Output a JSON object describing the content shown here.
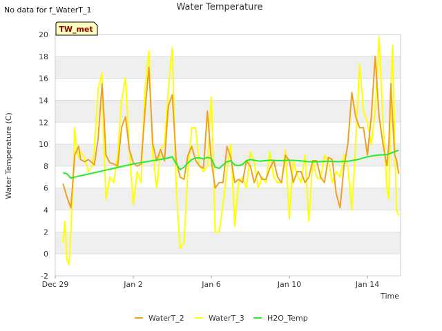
{
  "note": "No data for f_WaterT_1",
  "station_tag": "TW_met",
  "colors": {
    "WaterT_2": "#f0a020",
    "WaterT_3": "#ffff00",
    "H2O_Temp": "#22ee22",
    "band": "#efefef",
    "grid": "#dddddd"
  },
  "chart_data": {
    "type": "line",
    "title": "Water Temperature",
    "xlabel": "Time",
    "ylabel": "Water Temperature (C)",
    "x_ticks": [
      "Dec 29",
      "Jan 2",
      "Jan 6",
      "Jan 10",
      "Jan 14"
    ],
    "y_ticks": [
      "-2",
      "0",
      "2",
      "4",
      "6",
      "8",
      "10",
      "12",
      "14",
      "16",
      "18",
      "20"
    ],
    "xlim_days": [
      0,
      17.7
    ],
    "ylim": [
      -2,
      20
    ],
    "legend_position": "bottom-center",
    "grid": true,
    "series": [
      {
        "name": "WaterT_2",
        "x": [
          0.4,
          0.6,
          0.8,
          0.9,
          1.0,
          1.2,
          1.3,
          1.5,
          1.7,
          1.9,
          2.0,
          2.2,
          2.4,
          2.5,
          2.6,
          2.8,
          3.0,
          3.2,
          3.4,
          3.6,
          3.8,
          4.0,
          4.2,
          4.4,
          4.6,
          4.8,
          5.0,
          5.2,
          5.4,
          5.6,
          5.8,
          6.0,
          6.2,
          6.4,
          6.6,
          6.8,
          7.0,
          7.2,
          7.4,
          7.6,
          7.8,
          8.0,
          8.2,
          8.4,
          8.6,
          8.8,
          9.0,
          9.2,
          9.4,
          9.6,
          9.8,
          10.0,
          10.2,
          10.4,
          10.6,
          10.8,
          11.0,
          11.2,
          11.4,
          11.6,
          11.8,
          12.0,
          12.2,
          12.4,
          12.6,
          12.8,
          13.0,
          13.2,
          13.4,
          13.6,
          13.8,
          14.0,
          14.2,
          14.4,
          14.6,
          14.8,
          15.0,
          15.2,
          15.4,
          15.6,
          15.8,
          16.0,
          16.2,
          16.4,
          16.6,
          16.8,
          17.0
        ],
        "values": [
          6.4,
          5.2,
          4.2,
          6.5,
          9.0,
          9.8,
          8.6,
          8.4,
          8.6,
          8.3,
          8.1,
          10.5,
          15.5,
          12.5,
          9.0,
          8.3,
          8.2,
          8.0,
          11.5,
          12.5,
          9.5,
          8.3,
          8.0,
          8.2,
          13.0,
          17.0,
          10.0,
          8.5,
          9.5,
          8.5,
          13.5,
          14.5,
          8.5,
          7.0,
          6.8,
          9.0,
          9.8,
          8.5,
          8.0,
          7.8,
          13.0,
          8.5,
          6.0,
          6.5,
          6.5,
          9.8,
          8.8,
          6.5,
          6.8,
          6.5,
          8.5,
          8.0,
          6.5,
          7.5,
          6.8,
          6.8,
          7.8,
          8.5,
          7.0,
          6.5,
          9.0,
          8.5,
          6.5,
          7.5,
          7.5,
          6.5,
          7.0,
          8.5,
          8.5,
          7.0,
          6.5,
          8.8,
          8.6,
          5.5,
          4.2,
          8.0,
          10.0,
          14.7,
          12.5,
          11.5,
          11.5,
          9.0,
          12.5,
          18.0,
          12.5,
          10.0,
          8.0
        ],
        "x2": [
          17.0,
          17.1,
          17.2,
          17.3,
          17.4,
          17.5,
          17.6
        ],
        "values2": [
          8.0,
          10.0,
          15.5,
          12.0,
          9.0,
          8.5,
          7.3
        ]
      },
      {
        "name": "WaterT_3",
        "x": [
          0.4,
          0.5,
          0.6,
          0.7,
          0.8,
          0.9,
          1.0,
          1.1,
          1.2,
          1.3,
          1.5,
          1.7,
          1.9,
          2.0,
          2.2,
          2.4,
          2.5,
          2.6,
          2.8,
          3.0,
          3.2,
          3.4,
          3.6,
          3.8,
          4.0,
          4.2,
          4.4,
          4.6,
          4.8,
          5.0,
          5.2,
          5.4,
          5.6,
          5.8,
          6.0,
          6.2,
          6.4,
          6.6,
          6.8,
          7.0,
          7.2,
          7.4,
          7.6,
          7.8,
          8.0,
          8.1,
          8.2,
          8.4,
          8.6,
          8.8,
          9.0,
          9.2,
          9.4,
          9.6,
          9.8,
          10.0,
          10.2,
          10.4,
          10.6,
          10.8,
          11.0,
          11.2,
          11.4,
          11.6,
          11.8,
          12.0,
          12.2,
          12.4,
          12.6,
          12.8,
          13.0,
          13.2,
          13.4,
          13.6,
          13.8,
          14.0,
          14.2,
          14.4,
          14.6,
          14.8,
          15.0,
          15.2,
          15.4,
          15.6,
          15.8,
          16.0,
          16.2,
          16.4,
          16.6,
          16.8,
          17.0,
          17.1,
          17.2,
          17.3,
          17.4,
          17.5,
          17.6
        ],
        "values": [
          1.0,
          3.0,
          -0.5,
          -1.0,
          2.0,
          6.0,
          11.5,
          9.5,
          8.8,
          9.3,
          8.8,
          7.5,
          8.0,
          9.5,
          15.0,
          16.5,
          9.5,
          5.0,
          7.0,
          6.5,
          9.0,
          14.0,
          16.0,
          9.5,
          4.5,
          7.5,
          6.5,
          15.0,
          18.5,
          9.0,
          6.0,
          9.5,
          10.0,
          15.0,
          18.8,
          6.0,
          0.5,
          1.0,
          7.5,
          11.5,
          11.5,
          8.0,
          7.5,
          8.0,
          14.3,
          9.0,
          2.0,
          2.0,
          4.5,
          7.5,
          10.0,
          2.5,
          6.5,
          7.0,
          6.0,
          9.3,
          8.5,
          6.0,
          7.0,
          6.5,
          9.3,
          7.0,
          6.5,
          6.5,
          9.5,
          3.2,
          8.5,
          7.2,
          6.5,
          9.0,
          3.0,
          8.5,
          7.0,
          6.8,
          9.0,
          8.5,
          6.5,
          7.5,
          7.0,
          9.0,
          8.0,
          4.0,
          10.0,
          17.3,
          13.0,
          12.0,
          10.0,
          13.0,
          19.8,
          12.0,
          6.0,
          5.0,
          15.0,
          19.0,
          10.0,
          4.0,
          3.5
        ]
      },
      {
        "name": "H2O_Temp",
        "x": [
          0.4,
          0.6,
          0.8,
          1.0,
          1.5,
          2.0,
          2.5,
          3.0,
          3.5,
          4.0,
          4.5,
          5.0,
          5.5,
          5.8,
          6.0,
          6.2,
          6.4,
          6.6,
          6.8,
          7.0,
          7.2,
          7.4,
          7.6,
          7.8,
          8.0,
          8.2,
          8.4,
          8.6,
          8.8,
          9.0,
          9.2,
          9.4,
          9.6,
          9.8,
          10.0,
          10.5,
          11.0,
          11.5,
          12.0,
          12.5,
          13.0,
          13.5,
          14.0,
          14.5,
          15.0,
          15.5,
          16.0,
          16.5,
          17.0,
          17.6
        ],
        "values": [
          7.4,
          7.3,
          6.9,
          7.0,
          7.2,
          7.4,
          7.6,
          7.8,
          8.0,
          8.2,
          8.35,
          8.5,
          8.65,
          8.75,
          8.85,
          8.2,
          7.7,
          7.9,
          8.3,
          8.6,
          8.75,
          8.75,
          8.65,
          8.8,
          8.7,
          7.9,
          7.8,
          8.1,
          8.4,
          8.5,
          8.1,
          8.05,
          8.15,
          8.5,
          8.6,
          8.45,
          8.55,
          8.5,
          8.55,
          8.5,
          8.4,
          8.4,
          8.45,
          8.4,
          8.45,
          8.6,
          8.85,
          9.0,
          9.05,
          9.45
        ]
      }
    ]
  }
}
